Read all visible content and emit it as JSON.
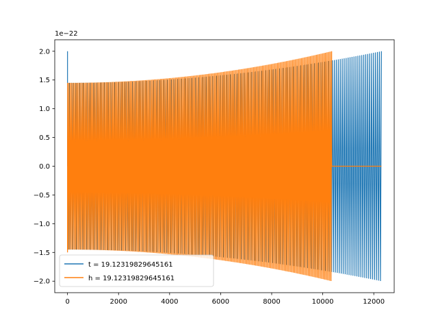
{
  "chart_data": {
    "type": "line",
    "title": "",
    "xlabel": "",
    "ylabel": "",
    "y_offset_label": "1e−22",
    "xlim": [
      -500,
      12800
    ],
    "ylim": [
      -2.2,
      2.2
    ],
    "x_ticks": [
      0,
      2000,
      4000,
      6000,
      8000,
      10000,
      12000
    ],
    "x_tick_labels": [
      "0",
      "2000",
      "4000",
      "6000",
      "8000",
      "10000",
      "12000"
    ],
    "y_ticks": [
      -2.0,
      -1.5,
      -1.0,
      -0.5,
      0.0,
      0.5,
      1.0,
      1.5,
      2.0
    ],
    "y_tick_labels": [
      "−2.0",
      "−1.5",
      "−1.0",
      "−0.5",
      "0.0",
      "0.5",
      "1.0",
      "1.5",
      "2.0"
    ],
    "grid": false,
    "legend_position": "lower-left",
    "series": [
      {
        "name": "t = 19.12319829645161",
        "color": "#1f77b4",
        "style": "chirp",
        "x_start": 0,
        "x_end": 12300,
        "amp_start": 1.45,
        "amp_end": 2.0,
        "cycles": 160,
        "initial_spike": 2.0
      },
      {
        "name": "h = 19.12319829645161",
        "color": "#ff7f0e",
        "style": "chirp",
        "x_start": 0,
        "x_end": 10350,
        "amp_start": 1.45,
        "amp_end": 2.0,
        "cycles": 210,
        "initial_spike": -1.5,
        "flat_after": [
          10350,
          12300
        ]
      }
    ]
  }
}
